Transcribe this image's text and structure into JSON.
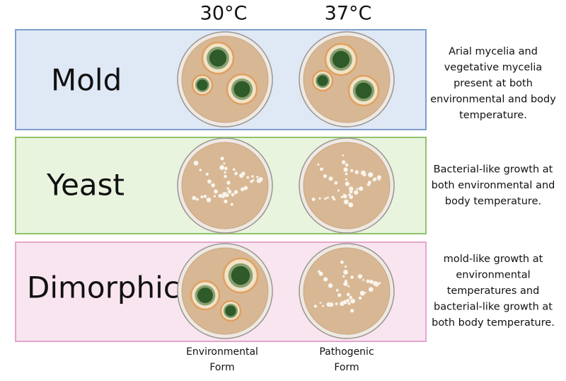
{
  "header": {
    "columns": [
      "30°C",
      "37°C"
    ]
  },
  "rows": [
    {
      "label": "Mold",
      "description": [
        "Arial mycelia and",
        "vegetative mycelia",
        "present at both",
        "environmental and body",
        "temperature."
      ]
    },
    {
      "label": "Yeast",
      "description": [
        "Bacterial-like growth at",
        "both environmental and",
        "body temperature."
      ]
    },
    {
      "label": "Dimorphic",
      "description": [
        "mold-like growth at",
        "environmental",
        "temperatures and",
        "bacterial-like growth at",
        "both body temperature."
      ]
    }
  ],
  "footer": [
    [
      "Environmental",
      "Form"
    ],
    [
      "Pathogenic",
      "Form"
    ]
  ]
}
